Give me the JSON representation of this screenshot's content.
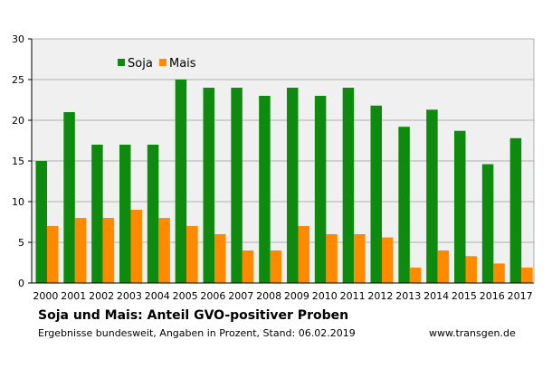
{
  "chart_data": {
    "type": "bar",
    "categories": [
      "2000",
      "2001",
      "2002",
      "2003",
      "2004",
      "2005",
      "2006",
      "2007",
      "2008",
      "2009",
      "2010",
      "2011",
      "2012",
      "2013",
      "2014",
      "2015",
      "2016",
      "2017"
    ],
    "series": [
      {
        "name": "Soja",
        "color": "#0e8b0e",
        "values": [
          15,
          21,
          17,
          17,
          17,
          25,
          24,
          24,
          23,
          24,
          23,
          24,
          21.8,
          19.2,
          21.3,
          18.7,
          14.6,
          17.8
        ]
      },
      {
        "name": "Mais",
        "color": "#ff8a00",
        "values": [
          7,
          8,
          8,
          9,
          8,
          7,
          6,
          4,
          4,
          7,
          6,
          6,
          5.6,
          1.9,
          4,
          3.3,
          2.4,
          1.9
        ]
      }
    ],
    "title": "Soja und Mais: Anteil GVO-positiver Proben",
    "subtitle": "Ergebnisse bundesweit, Angaben in Prozent, Stand: 06.02.2019",
    "source": "www.transgen.de",
    "xlabel": "",
    "ylabel": "",
    "ylim": [
      0,
      30
    ],
    "yticks": [
      0,
      5,
      10,
      15,
      20,
      25,
      30
    ],
    "grid": true,
    "legend": "top-left",
    "plot_background": "#f0f0f0",
    "grid_color": "#9a9a9a"
  }
}
